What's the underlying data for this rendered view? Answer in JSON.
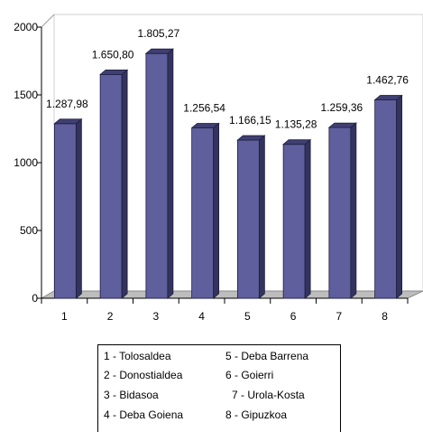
{
  "chart_data": {
    "type": "bar",
    "categories": [
      "1",
      "2",
      "3",
      "4",
      "5",
      "6",
      "7",
      "8"
    ],
    "values": [
      1287.98,
      1650.8,
      1805.27,
      1256.54,
      1166.15,
      1135.28,
      1259.36,
      1462.76
    ],
    "value_labels": [
      "1.287,98",
      "1.650,80",
      "1.805,27",
      "1.256,54",
      "1.166,15",
      "1.135,28",
      "1.259,36",
      "1.462,76"
    ],
    "y_ticks": [
      "0",
      "500",
      "1000",
      "1500",
      "2000"
    ],
    "ylim": [
      0,
      2000
    ],
    "title": "",
    "xlabel": "",
    "ylabel": "",
    "grid": false,
    "bar_color": "#5f5f9d",
    "legend": {
      "placement": "bottom",
      "items": [
        "1 - Tolosaldea",
        "2 - Donostialdea",
        "3 - Bidasoa",
        "4 - Deba Goiena",
        "5 - Deba Barrena",
        "6 - Goierri",
        "7 - Urola-Kosta",
        "8 - Gipuzkoa"
      ]
    }
  }
}
